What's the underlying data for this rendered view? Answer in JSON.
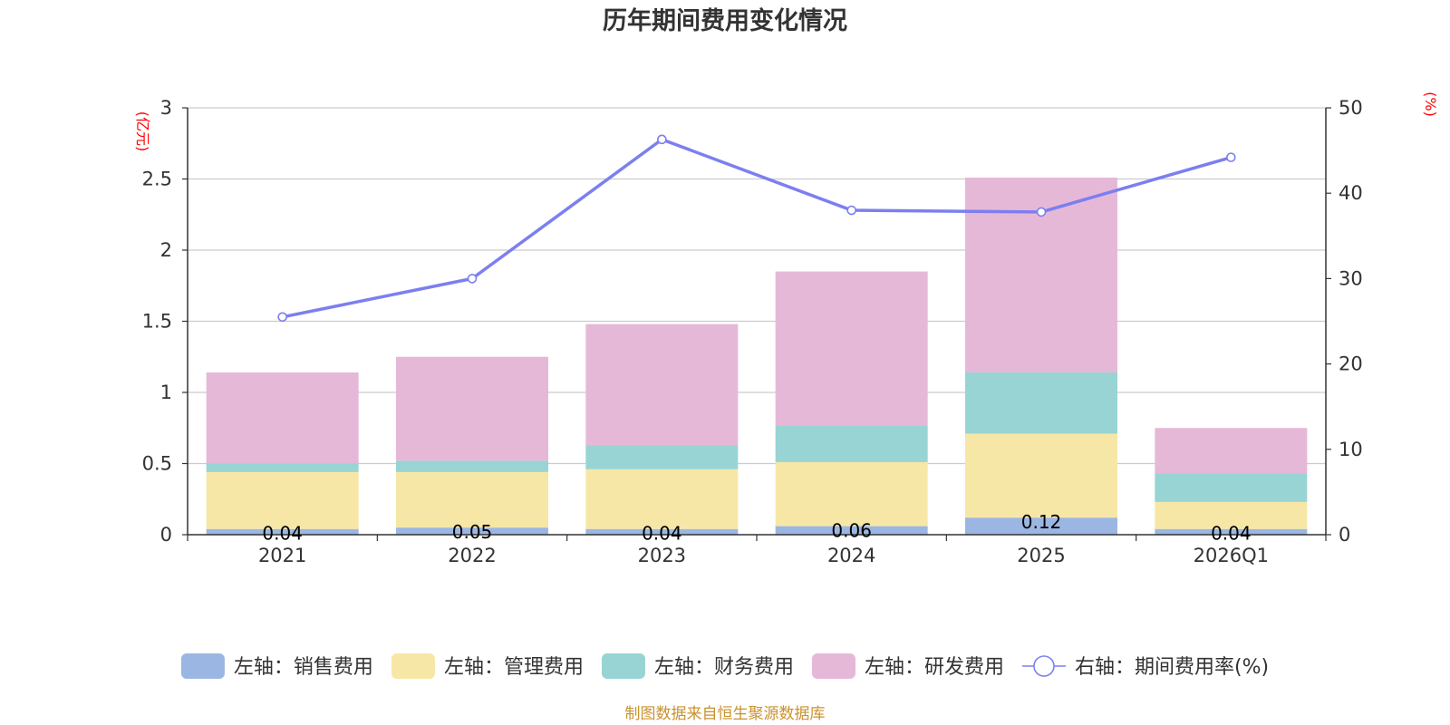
{
  "chart_data": {
    "type": "bar",
    "title": "历年期间费用变化情况",
    "categories": [
      "2021",
      "2022",
      "2023",
      "2024",
      "2025",
      "2026Q1"
    ],
    "stacked": true,
    "series": [
      {
        "name": "左轴：销售费用",
        "axis": "left",
        "type": "bar",
        "color": "#9bb6e2",
        "values": [
          0.04,
          0.05,
          0.04,
          0.06,
          0.12,
          0.04
        ],
        "show_labels": true
      },
      {
        "name": "左轴：管理费用",
        "axis": "left",
        "type": "bar",
        "color": "#f7e7a6",
        "values": [
          0.4,
          0.39,
          0.42,
          0.45,
          0.59,
          0.19
        ],
        "show_labels": false
      },
      {
        "name": "左轴：财务费用",
        "axis": "left",
        "type": "bar",
        "color": "#98d4d4",
        "values": [
          0.06,
          0.08,
          0.17,
          0.26,
          0.43,
          0.2
        ],
        "show_labels": false
      },
      {
        "name": "左轴：研发费用",
        "axis": "left",
        "type": "bar",
        "color": "#e6b8d8",
        "values": [
          0.64,
          0.73,
          0.85,
          1.08,
          1.37,
          0.32
        ],
        "show_labels": false
      },
      {
        "name": "右轴：期间费用率(%)",
        "axis": "right",
        "type": "line",
        "color": "#7b7ff0",
        "values": [
          25.5,
          30.0,
          46.3,
          38.0,
          37.8,
          44.2
        ]
      }
    ],
    "left_axis": {
      "unit": "(亿元)",
      "ylim": [
        0,
        3
      ],
      "ticks": [
        0,
        0.5,
        1,
        1.5,
        2,
        2.5,
        3
      ],
      "tick_labels": [
        "0",
        "0.5",
        "1",
        "1.5",
        "2",
        "2.5",
        "3"
      ]
    },
    "right_axis": {
      "unit": "(%)",
      "ylim": [
        0,
        50
      ],
      "ticks": [
        0,
        10,
        20,
        30,
        40,
        50
      ],
      "tick_labels": [
        "0",
        "10",
        "20",
        "30",
        "40",
        "50"
      ]
    },
    "grid": true,
    "legend_position": "bottom",
    "source": "制图数据来自恒生聚源数据库"
  }
}
